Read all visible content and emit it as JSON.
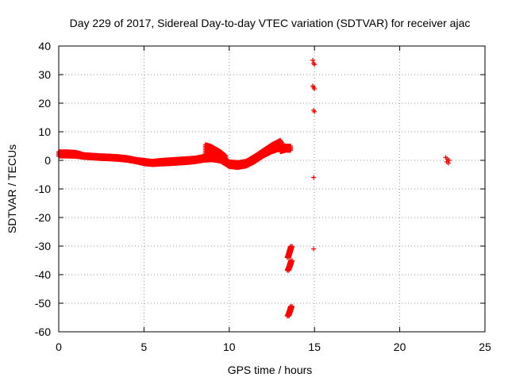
{
  "chart_data": {
    "type": "scatter",
    "title": "Day 229 of 2017, Sidereal Day-to-day VTEC variation (SDTVAR) for receiver ajac",
    "xlabel": "GPS time / hours",
    "ylabel": "SDTVAR / TECUs",
    "xlim": [
      0,
      25
    ],
    "ylim": [
      -60,
      40
    ],
    "xticks": [
      0,
      5,
      10,
      15,
      20,
      25
    ],
    "yticks": [
      40,
      30,
      20,
      10,
      0,
      -10,
      -20,
      -30,
      -40,
      -50,
      -60
    ],
    "grid": true,
    "marker": "+",
    "color": "#ff0000",
    "bands": [
      {
        "name": "main-trace",
        "x": [
          0,
          0.5,
          1.0,
          1.5,
          2.0,
          2.5,
          3.0,
          3.5,
          4.0,
          4.5,
          5.0,
          5.5,
          6.0,
          6.5,
          7.0,
          7.5,
          8.0,
          8.5,
          9.0,
          9.5,
          10.0,
          10.5,
          11.0,
          11.5,
          12.0,
          12.5,
          13.0,
          13.2
        ],
        "lower": [
          1.5,
          1.5,
          1.4,
          1.0,
          0.8,
          0.6,
          0.5,
          0.3,
          0.0,
          -0.5,
          -1.2,
          -1.5,
          -1.3,
          -1.2,
          -1.0,
          -0.8,
          -0.5,
          0.0,
          0.2,
          -0.3,
          -2.2,
          -2.5,
          -2.0,
          -0.5,
          1.5,
          3.0,
          4.0,
          3.5
        ],
        "upper": [
          3.0,
          3.0,
          2.8,
          2.0,
          1.8,
          1.6,
          1.5,
          1.3,
          1.0,
          0.4,
          0.0,
          -0.3,
          0.0,
          0.2,
          0.4,
          0.6,
          0.8,
          1.4,
          2.0,
          1.4,
          -0.5,
          -0.8,
          -0.3,
          1.5,
          3.5,
          5.5,
          7.0,
          5.0
        ]
      },
      {
        "name": "bump-9h",
        "x": [
          8.6,
          8.9,
          9.2,
          9.5,
          9.8
        ],
        "lower": [
          2.5,
          2.0,
          1.2,
          0.5,
          -0.5
        ],
        "upper": [
          5.5,
          5.0,
          4.0,
          3.0,
          1.5
        ]
      },
      {
        "name": "tail-13h",
        "x": [
          13.0,
          13.3,
          13.6
        ],
        "lower": [
          3.0,
          3.5,
          3.5
        ],
        "upper": [
          5.5,
          5.0,
          5.0
        ]
      }
    ],
    "clusters": [
      {
        "name": "cluster-13.5h-upper",
        "x": [
          13.4,
          13.5,
          13.6
        ],
        "y": [
          -34,
          -32,
          -30
        ]
      },
      {
        "name": "cluster-13.5h-middle",
        "x": [
          13.4,
          13.5,
          13.6
        ],
        "y": [
          -38.5,
          -37,
          -35
        ]
      },
      {
        "name": "cluster-13.5h-lower",
        "x": [
          13.4,
          13.5,
          13.6
        ],
        "y": [
          -54.5,
          -53,
          -51
        ]
      }
    ],
    "points": [
      {
        "x": 14.9,
        "y": 35
      },
      {
        "x": 14.95,
        "y": 34
      },
      {
        "x": 15.0,
        "y": 33.5
      },
      {
        "x": 14.9,
        "y": 26
      },
      {
        "x": 14.95,
        "y": 25.5
      },
      {
        "x": 15.0,
        "y": 25
      },
      {
        "x": 14.95,
        "y": 17.5
      },
      {
        "x": 15.0,
        "y": 17
      },
      {
        "x": 14.95,
        "y": -6
      },
      {
        "x": 14.95,
        "y": -31
      },
      {
        "x": 22.7,
        "y": 1
      },
      {
        "x": 22.8,
        "y": 0.5
      },
      {
        "x": 22.9,
        "y": 0
      },
      {
        "x": 22.75,
        "y": -0.5
      },
      {
        "x": 22.85,
        "y": -1
      }
    ]
  }
}
